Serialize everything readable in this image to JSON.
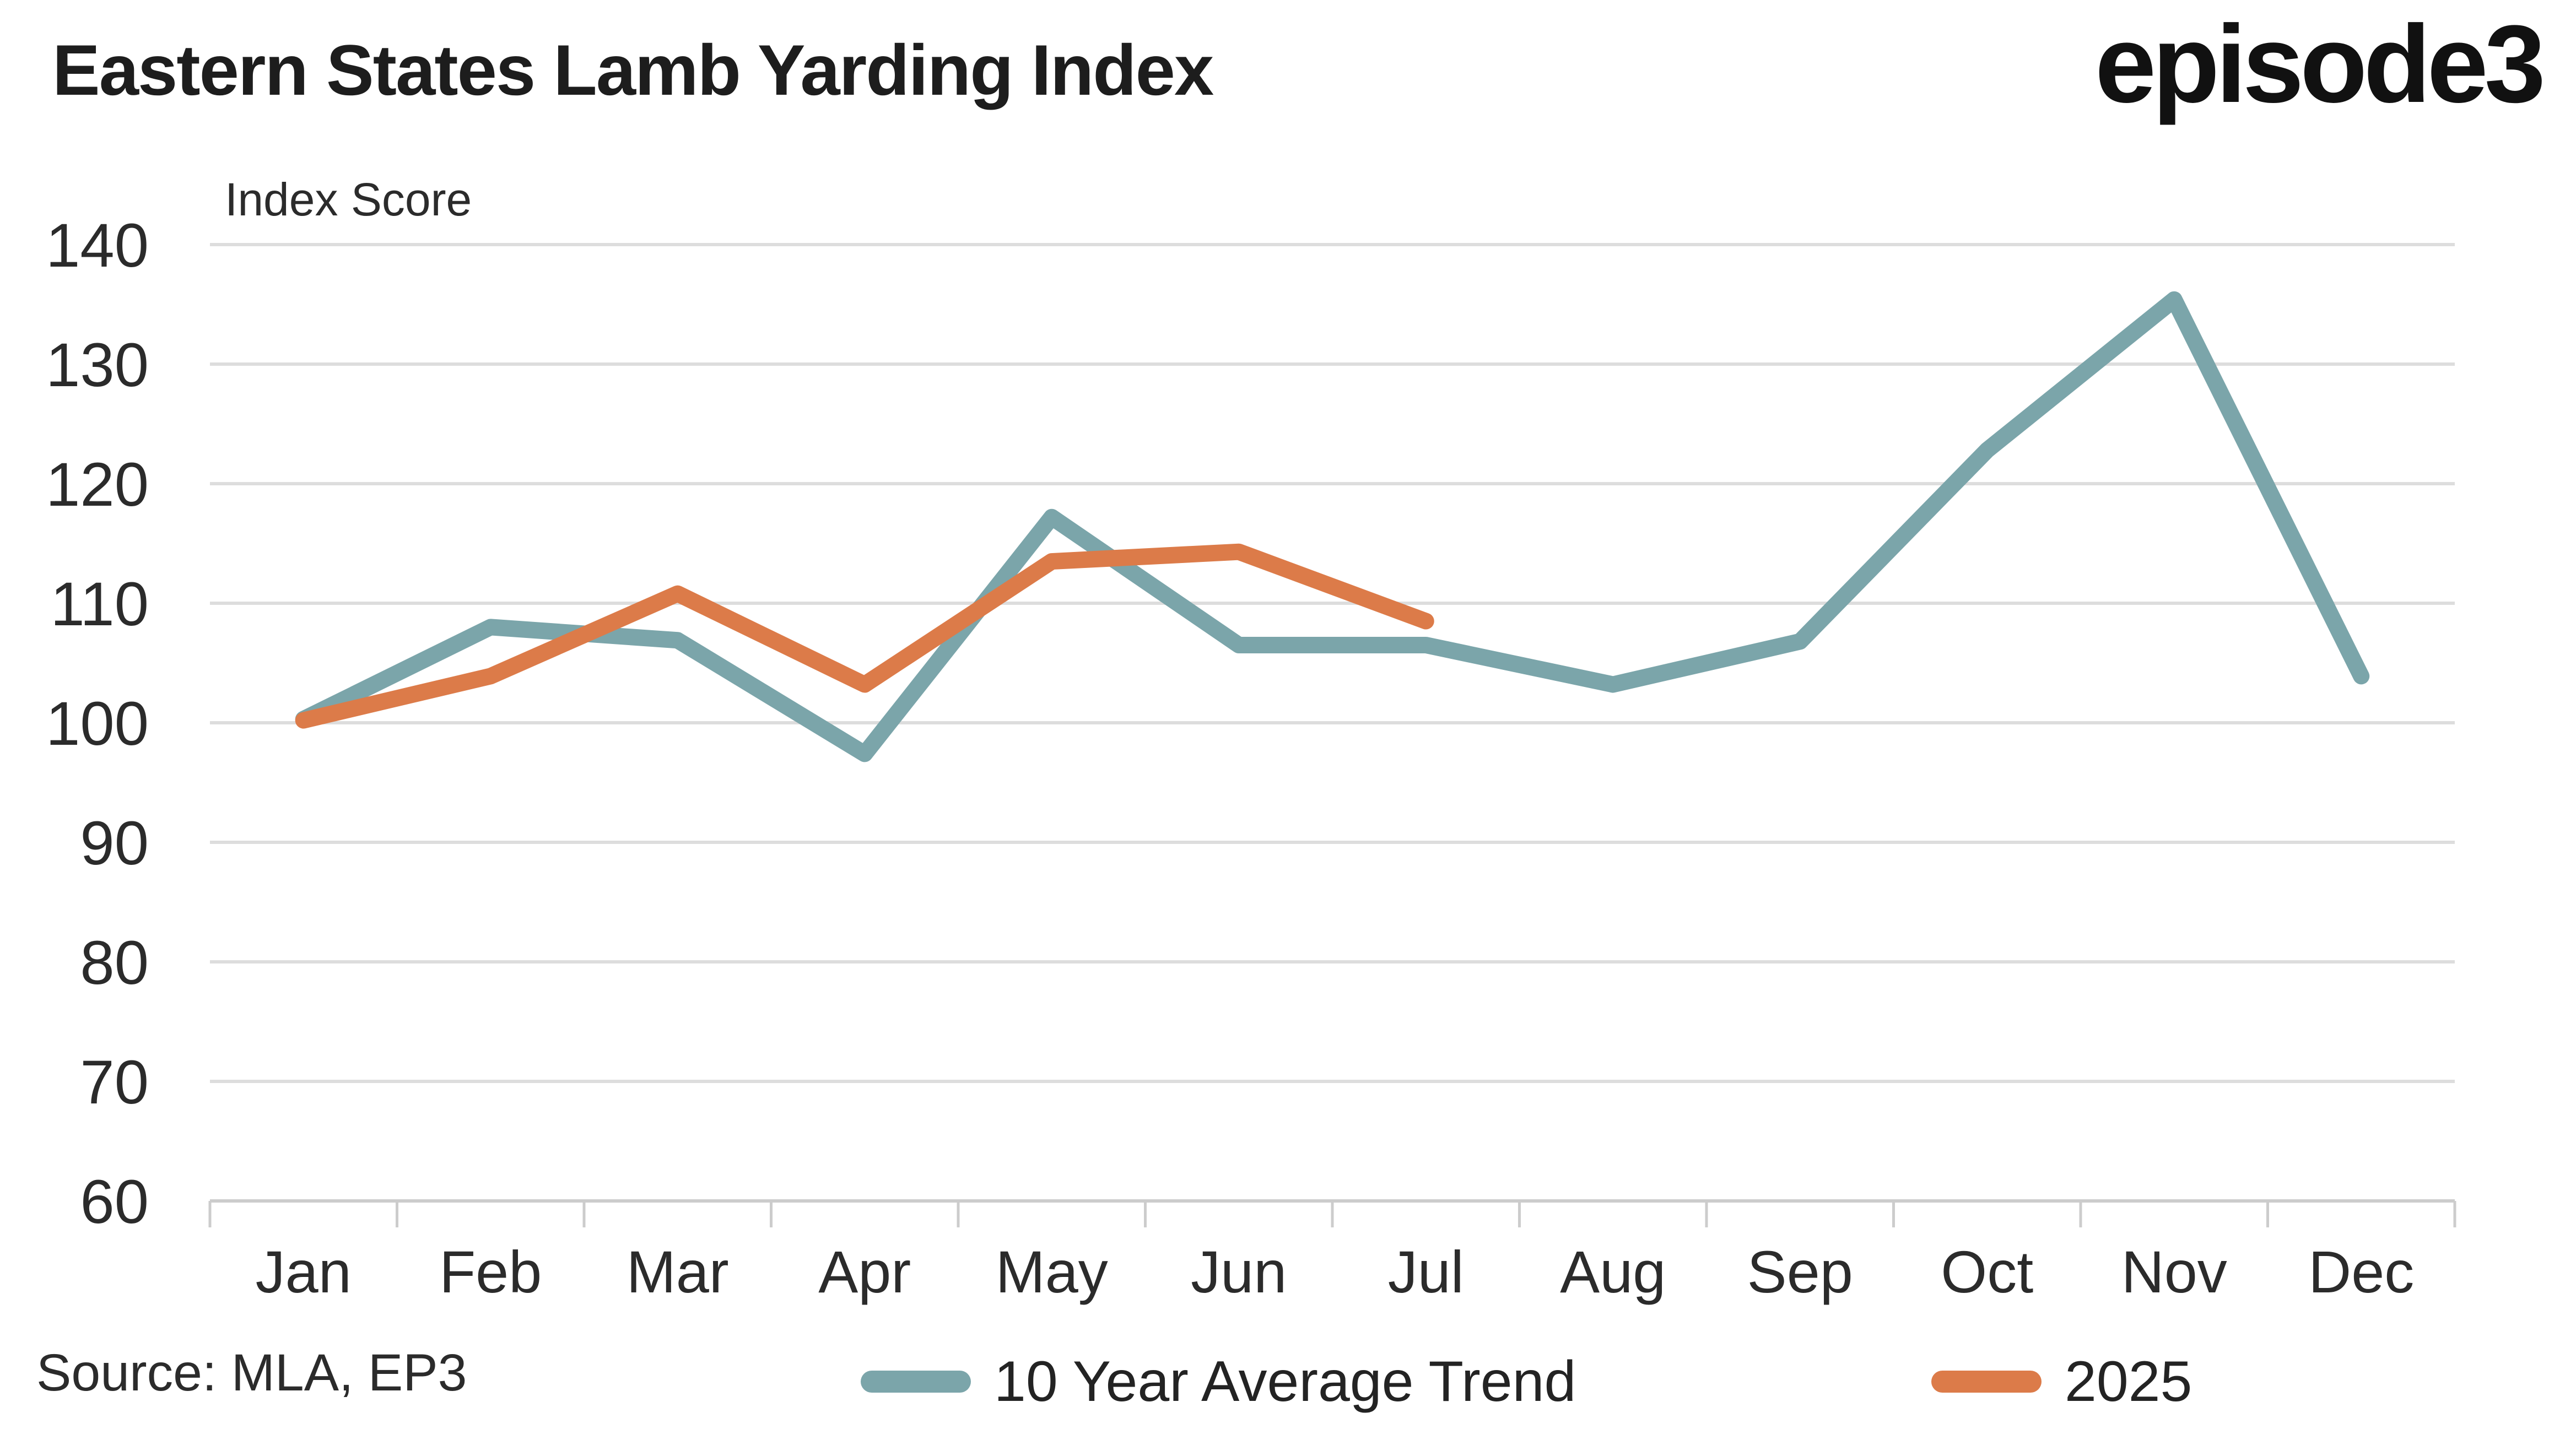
{
  "header": {
    "title": "Eastern States Lamb Yarding Index",
    "logo": "episode3"
  },
  "footer": {
    "source": "Source: MLA, EP3"
  },
  "chart_data": {
    "type": "line",
    "title": "Eastern States Lamb Yarding Index",
    "ylabel": "Index Score",
    "xlabel": "",
    "categories": [
      "Jan",
      "Feb",
      "Mar",
      "Apr",
      "May",
      "Jun",
      "Jul",
      "Aug",
      "Sep",
      "Oct",
      "Nov",
      "Dec"
    ],
    "series": [
      {
        "name": "10 Year Average Trend",
        "color": "#7BA5AA",
        "values": [
          100.3,
          108.0,
          106.9,
          97.4,
          117.2,
          106.5,
          106.5,
          103.2,
          106.8,
          122.8,
          135.4,
          103.9
        ]
      },
      {
        "name": "2025",
        "color": "#DC7B49",
        "values": [
          100.2,
          103.9,
          110.8,
          103.2,
          113.5,
          114.3,
          108.5
        ]
      }
    ],
    "ylim": [
      60,
      140
    ],
    "ytick_step": 10,
    "yticks": [
      60,
      70,
      80,
      90,
      100,
      110,
      120,
      130,
      140
    ],
    "grid": "horizontal",
    "legend_position": "bottom"
  },
  "colors": {
    "gridline": "#DDDDDD",
    "axisline": "#CCCCCC",
    "tick": "#CCCCCC",
    "text": "#2B2B2B"
  }
}
